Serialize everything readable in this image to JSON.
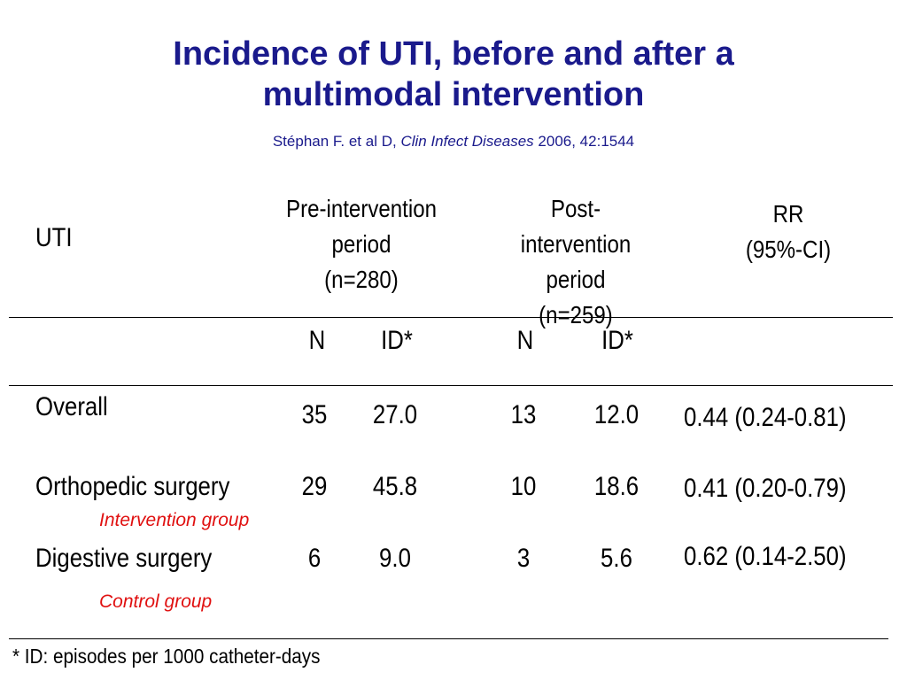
{
  "title": {
    "line1": "Incidence of UTI, before and after a",
    "line2": "multimodal intervention"
  },
  "citation": {
    "authors": "Stéphan F. et al D,",
    "journal": "Clin Infect Diseases",
    "details": "2006, 42:1544"
  },
  "table": {
    "row_header": "UTI",
    "pre": {
      "line1": "Pre-intervention",
      "line2": "period",
      "line3": "(n=280)"
    },
    "post": {
      "line1": "Post-intervention",
      "line2": "period",
      "line3": "(n=259)"
    },
    "rr": {
      "line1": "RR",
      "line2": "(95%-CI)"
    },
    "subheaders": {
      "pre_n": "N",
      "pre_id": "ID*",
      "post_n": "N",
      "post_id": "ID*"
    },
    "rows": [
      {
        "label": "Overall",
        "pre_n": "35",
        "pre_id": "27.0",
        "post_n": "13",
        "post_id": "12.0",
        "rr": "0.44 (0.24-0.81)"
      },
      {
        "label": "Orthopedic surgery",
        "pre_n": "29",
        "pre_id": "45.8",
        "post_n": "10",
        "post_id": "18.6",
        "rr": "0.41 (0.20-0.79)"
      },
      {
        "label": "Digestive surgery",
        "pre_n": "6",
        "pre_id": "9.0",
        "post_n": "3",
        "post_id": "5.6",
        "rr": "0.62 (0.14-2.50)"
      }
    ]
  },
  "notes": {
    "intervention_group": "Intervention group",
    "control_group": "Control group"
  },
  "footnote": "* ID: episodes per 1000 catheter-days",
  "colors": {
    "title": "#1a1a8c",
    "note": "#e01010"
  }
}
